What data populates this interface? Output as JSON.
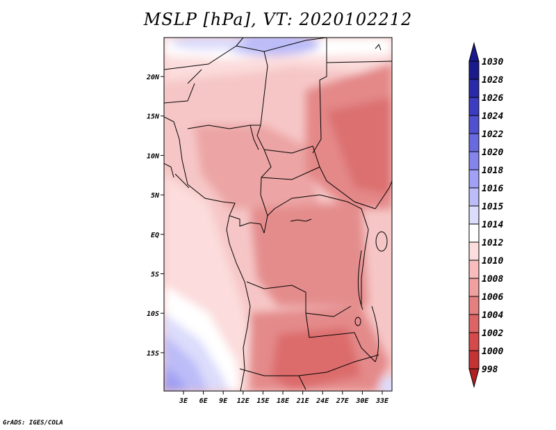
{
  "title": "MSLP [hPa], VT: 2020102212",
  "credit": "GrADS: IGES/COLA",
  "lat_ticks": [
    "20N",
    "15N",
    "10N",
    "5N",
    "EQ",
    "5S",
    "10S",
    "15S"
  ],
  "lon_ticks": [
    "3E",
    "6E",
    "9E",
    "12E",
    "15E",
    "18E",
    "21E",
    "24E",
    "27E",
    "30E",
    "33E"
  ],
  "colorbar": {
    "levels": [
      "1030",
      "1028",
      "1026",
      "1024",
      "1022",
      "1020",
      "1018",
      "1016",
      "1015",
      "1014",
      "1012",
      "1010",
      "1008",
      "1006",
      "1004",
      "1002",
      "1000",
      "998"
    ],
    "colors": [
      "#1a1a8c",
      "#2a2aa8",
      "#3c3cc0",
      "#5050d0",
      "#6a6ae0",
      "#8484ec",
      "#a0a0f4",
      "#bcbcf8",
      "#dcdcfc",
      "#ffffff",
      "#fcdcdc",
      "#f8bcbc",
      "#f0a0a0",
      "#e48080",
      "#dc6464",
      "#d44a4a",
      "#c43434",
      "#b02020"
    ]
  }
}
